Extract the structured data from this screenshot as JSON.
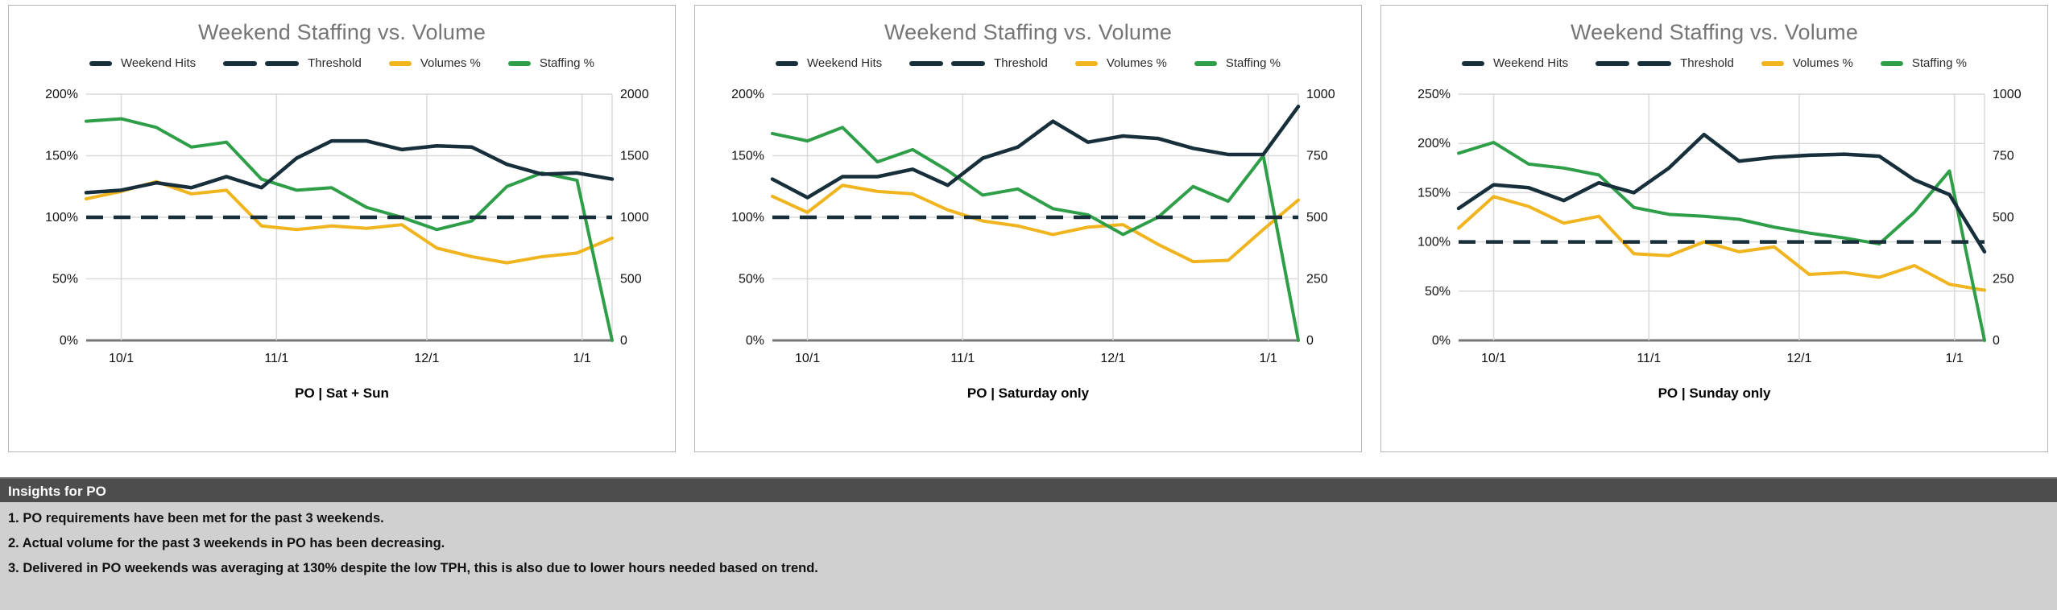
{
  "colors": {
    "navy": "#172f3a",
    "yellow": "#f0b41f",
    "green": "#2f9e48",
    "title_gray": "#757575",
    "grid": "#d9d9d9",
    "axis_line": "#757575",
    "axis_text": "#111111",
    "card_border": "#b5b5b5",
    "insights_header_bg": "#4d4d4d",
    "insights_body_bg": "#d0d0d0"
  },
  "legend": {
    "items": [
      {
        "label": "Weekend Hits",
        "color_key": "navy",
        "style": "solid"
      },
      {
        "label": "Threshold",
        "color_key": "navy",
        "style": "dashed"
      },
      {
        "label": "Volumes %",
        "color_key": "yellow",
        "style": "solid"
      },
      {
        "label": "Staffing %",
        "color_key": "green",
        "style": "solid"
      }
    ]
  },
  "chart_data": [
    {
      "type": "line",
      "title": "Weekend Staffing vs. Volume",
      "subtitle": "PO | Sat + Sun",
      "x_days": [
        0,
        7,
        14,
        21,
        28,
        35,
        42,
        49,
        56,
        63,
        70,
        77,
        84,
        91,
        98,
        105
      ],
      "month_ticks": [
        {
          "day": 7,
          "label": "10/1"
        },
        {
          "day": 38,
          "label": "11/1"
        },
        {
          "day": 68,
          "label": "12/1"
        },
        {
          "day": 99,
          "label": "1/1"
        }
      ],
      "left_axis": {
        "min": 0,
        "max": 200,
        "tick_values": [
          0,
          50,
          100,
          150,
          200
        ],
        "tick_labels": [
          "0%",
          "50%",
          "100%",
          "150%",
          "200%"
        ]
      },
      "right_axis": {
        "min": 0,
        "max": 2000,
        "tick_values": [
          0,
          500,
          1000,
          1500,
          2000
        ],
        "tick_labels": [
          "0",
          "500",
          "1000",
          "1500",
          "2000"
        ]
      },
      "series": [
        {
          "name": "Weekend Hits",
          "color_key": "navy",
          "axis": "right",
          "dashed": false,
          "values": [
            1200,
            1220,
            1280,
            1240,
            1330,
            1240,
            1480,
            1620,
            1620,
            1550,
            1580,
            1570,
            1430,
            1350,
            1360,
            1310
          ]
        },
        {
          "name": "Threshold",
          "color_key": "navy",
          "axis": "left",
          "dashed": true,
          "constant": 100
        },
        {
          "name": "Volumes %",
          "color_key": "yellow",
          "axis": "left",
          "dashed": false,
          "values": [
            115,
            121,
            129,
            119,
            122,
            93,
            90,
            93,
            91,
            94,
            75,
            68,
            63,
            68,
            71,
            83
          ]
        },
        {
          "name": "Staffing %",
          "color_key": "green",
          "axis": "left",
          "dashed": false,
          "values": [
            178,
            180,
            173,
            157,
            161,
            131,
            122,
            124,
            108,
            100,
            90,
            97,
            125,
            136,
            130,
            0
          ]
        }
      ]
    },
    {
      "type": "line",
      "title": "Weekend Staffing vs. Volume",
      "subtitle": "PO | Saturday only",
      "x_days": [
        0,
        7,
        14,
        21,
        28,
        35,
        42,
        49,
        56,
        63,
        70,
        77,
        84,
        91,
        98,
        105
      ],
      "month_ticks": [
        {
          "day": 7,
          "label": "10/1"
        },
        {
          "day": 38,
          "label": "11/1"
        },
        {
          "day": 68,
          "label": "12/1"
        },
        {
          "day": 99,
          "label": "1/1"
        }
      ],
      "left_axis": {
        "min": 0,
        "max": 200,
        "tick_values": [
          0,
          50,
          100,
          150,
          200
        ],
        "tick_labels": [
          "0%",
          "50%",
          "100%",
          "150%",
          "200%"
        ]
      },
      "right_axis": {
        "min": 0,
        "max": 1000,
        "tick_values": [
          0,
          250,
          500,
          750,
          1000
        ],
        "tick_labels": [
          "0",
          "250",
          "500",
          "750",
          "1000"
        ]
      },
      "series": [
        {
          "name": "Weekend Hits",
          "color_key": "navy",
          "axis": "right",
          "dashed": false,
          "values": [
            655,
            580,
            665,
            665,
            695,
            630,
            740,
            785,
            890,
            805,
            830,
            820,
            780,
            755,
            755,
            950
          ]
        },
        {
          "name": "Threshold",
          "color_key": "navy",
          "axis": "left",
          "dashed": true,
          "constant": 100
        },
        {
          "name": "Volumes %",
          "color_key": "yellow",
          "axis": "left",
          "dashed": false,
          "values": [
            117,
            104,
            126,
            121,
            119,
            106,
            97,
            93,
            86,
            92,
            94,
            78,
            64,
            65,
            90,
            114
          ]
        },
        {
          "name": "Staffing %",
          "color_key": "green",
          "axis": "left",
          "dashed": false,
          "values": [
            168,
            162,
            173,
            145,
            155,
            138,
            118,
            123,
            107,
            102,
            86,
            100,
            125,
            113,
            150,
            0
          ]
        }
      ]
    },
    {
      "type": "line",
      "title": "Weekend Staffing vs. Volume",
      "subtitle": "PO | Sunday only",
      "x_days": [
        0,
        7,
        14,
        21,
        28,
        35,
        42,
        49,
        56,
        63,
        70,
        77,
        84,
        91,
        98,
        105
      ],
      "month_ticks": [
        {
          "day": 7,
          "label": "10/1"
        },
        {
          "day": 38,
          "label": "11/1"
        },
        {
          "day": 68,
          "label": "12/1"
        },
        {
          "day": 99,
          "label": "1/1"
        }
      ],
      "left_axis": {
        "min": 0,
        "max": 250,
        "tick_values": [
          0,
          50,
          100,
          150,
          200,
          250
        ],
        "tick_labels": [
          "0%",
          "50%",
          "100%",
          "150%",
          "200%",
          "250%"
        ]
      },
      "right_axis": {
        "min": 0,
        "max": 1000,
        "tick_values": [
          0,
          250,
          500,
          750,
          1000
        ],
        "tick_labels": [
          "0",
          "250",
          "500",
          "750",
          "1000"
        ]
      },
      "series": [
        {
          "name": "Weekend Hits",
          "color_key": "navy",
          "axis": "right",
          "dashed": false,
          "values": [
            536,
            632,
            620,
            568,
            640,
            600,
            700,
            836,
            728,
            744,
            752,
            756,
            748,
            652,
            592,
            360
          ]
        },
        {
          "name": "Threshold",
          "color_key": "navy",
          "axis": "left",
          "dashed": true,
          "constant": 100
        },
        {
          "name": "Volumes %",
          "color_key": "yellow",
          "axis": "left",
          "dashed": false,
          "values": [
            114,
            146,
            136,
            119,
            126,
            88,
            86,
            100,
            90,
            95,
            67,
            69,
            64,
            76,
            57,
            51
          ]
        },
        {
          "name": "Staffing %",
          "color_key": "green",
          "axis": "left",
          "dashed": false,
          "values": [
            190,
            201,
            179,
            175,
            168,
            135,
            128,
            126,
            123,
            115,
            109,
            104,
            98,
            130,
            172,
            0
          ]
        }
      ]
    }
  ],
  "insights": {
    "header": "Insights for PO",
    "items": [
      "1. PO requirements have been met for the past 3 weekends.",
      "2. Actual volume for the past 3 weekends in PO has been decreasing.",
      "3. Delivered in PO weekends was averaging at 130% despite the low TPH, this is also due to lower hours needed based on trend."
    ]
  }
}
